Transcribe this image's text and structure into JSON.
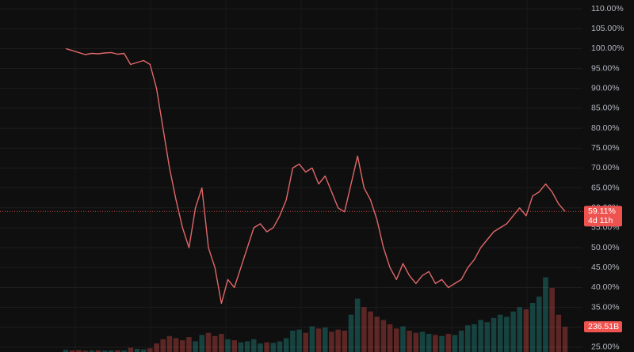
{
  "chart_data": {
    "type": "line",
    "values": [
      100,
      99.5,
      99,
      98.5,
      98.8,
      98.7,
      98.9,
      99,
      98.6,
      98.8,
      96,
      96.5,
      97,
      96,
      90,
      80,
      70,
      62,
      55,
      50,
      60,
      65,
      50,
      45,
      36,
      42,
      40,
      45,
      50,
      55,
      56,
      54,
      55,
      58,
      62,
      70,
      71,
      69,
      70,
      66,
      68,
      64,
      60,
      59,
      66,
      73,
      65,
      62,
      57,
      50,
      45,
      42,
      46,
      43,
      41,
      43,
      44,
      41,
      42,
      40,
      41,
      42,
      45,
      47,
      50,
      52,
      54,
      55,
      56,
      58,
      60,
      58,
      63,
      64,
      66,
      64,
      61,
      59.11
    ],
    "color": "#e0676a",
    "series": [
      {
        "name": "Volume",
        "axis": "y2",
        "values": [
          20,
          15,
          18,
          12,
          14,
          16,
          13,
          15,
          17,
          14,
          40,
          30,
          25,
          35,
          80,
          120,
          150,
          130,
          110,
          140,
          100,
          160,
          180,
          150,
          170,
          120,
          110,
          90,
          100,
          120,
          80,
          90,
          85,
          100,
          130,
          200,
          210,
          180,
          240,
          220,
          230,
          190,
          210,
          200,
          350,
          500,
          420,
          380,
          330,
          300,
          260,
          220,
          240,
          200,
          180,
          190,
          170,
          160,
          150,
          170,
          160,
          200,
          250,
          260,
          300,
          280,
          320,
          350,
          330,
          380,
          420,
          400,
          460,
          520,
          700,
          600,
          350,
          236.51
        ]
      }
    ],
    "ylim": [
      23.8,
      112.2
    ],
    "y2lim": [
      0,
      3300
    ],
    "yticks": [
      {
        "value": 110,
        "label": "110.00%"
      },
      {
        "value": 105,
        "label": "105.00%"
      },
      {
        "value": 100,
        "label": "100.00%"
      },
      {
        "value": 95,
        "label": "95.00%"
      },
      {
        "value": 90,
        "label": "90.00%"
      },
      {
        "value": 85,
        "label": "85.00%"
      },
      {
        "value": 80,
        "label": "80.00%"
      },
      {
        "value": 75,
        "label": "75.00%"
      },
      {
        "value": 70,
        "label": "70.00%"
      },
      {
        "value": 65,
        "label": "65.00%"
      },
      {
        "value": 60,
        "label": "60.00%"
      },
      {
        "value": 55,
        "label": "55.00%"
      },
      {
        "value": 50,
        "label": "50.00%"
      },
      {
        "value": 45,
        "label": "45.00%"
      },
      {
        "value": 40,
        "label": "40.00%"
      },
      {
        "value": 35,
        "label": "35.00%"
      },
      {
        "value": 30,
        "label": "30.00%"
      },
      {
        "value": 25,
        "label": "25.00%"
      }
    ],
    "grid": true,
    "up_color": "#26a69a",
    "down_color": "#ef5350",
    "current_price": {
      "value": 59.11,
      "label": "59.11%"
    },
    "countdown": "4d 11h",
    "current_volume": {
      "value": 236.51,
      "label": "236.51B"
    }
  }
}
